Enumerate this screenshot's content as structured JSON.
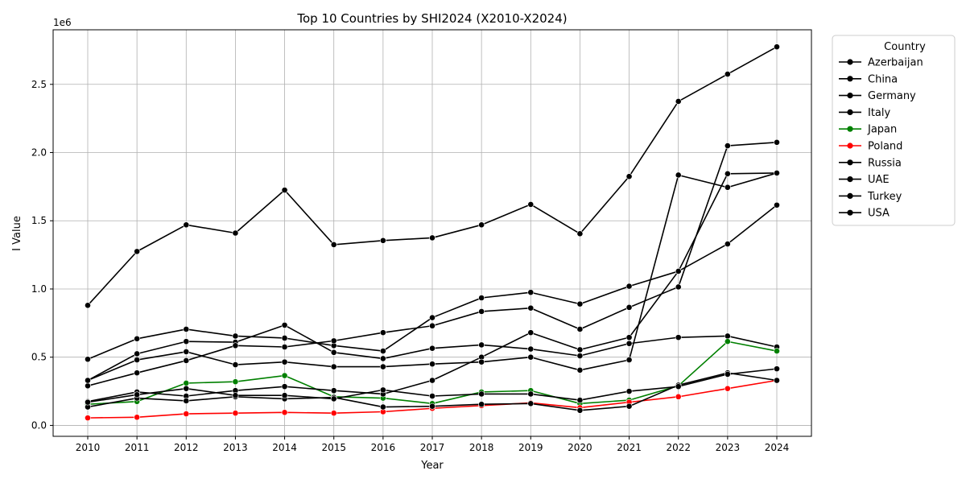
{
  "chart_data": {
    "type": "line",
    "title": "Top 10 Countries by SHI2024 (X2010-X2024)",
    "xlabel": "Year",
    "ylabel": "I Value",
    "y_scale_label": "1e6",
    "x": [
      2010,
      2011,
      2012,
      2013,
      2014,
      2015,
      2016,
      2017,
      2018,
      2019,
      2020,
      2021,
      2022,
      2023,
      2024
    ],
    "x_tick_labels": [
      "2010",
      "2011",
      "2012",
      "2013",
      "2014",
      "2015",
      "2016",
      "2017",
      "2018",
      "2019",
      "2020",
      "2021",
      "2022",
      "2023",
      "2024"
    ],
    "ylim": [
      -80000,
      2900000
    ],
    "y_ticks": [
      0,
      500000,
      1000000,
      1500000,
      2000000,
      2500000
    ],
    "y_tick_labels": [
      "0.0",
      "0.5",
      "1.0",
      "1.5",
      "2.0",
      "2.5"
    ],
    "grid": true,
    "legend_title": "Country",
    "legend_position": "outside-right",
    "series": [
      {
        "name": "Azerbaijan",
        "color": "#000000",
        "values": [
          880000,
          1275000,
          1470000,
          1410000,
          1725000,
          1325000,
          1355000,
          1375000,
          1470000,
          1620000,
          1405000,
          1825000,
          2375000,
          2575000,
          2775000
        ]
      },
      {
        "name": "China",
        "color": "#000000",
        "values": [
          485000,
          635000,
          705000,
          655000,
          640000,
          585000,
          545000,
          790000,
          935000,
          975000,
          890000,
          1020000,
          1130000,
          1330000,
          1615000
        ]
      },
      {
        "name": "Germany",
        "color": "#000000",
        "values": [
          330000,
          525000,
          615000,
          610000,
          735000,
          535000,
          490000,
          565000,
          590000,
          560000,
          510000,
          600000,
          645000,
          655000,
          575000
        ]
      },
      {
        "name": "Italy",
        "color": "#000000",
        "values": [
          290000,
          385000,
          475000,
          585000,
          575000,
          620000,
          680000,
          730000,
          835000,
          860000,
          705000,
          865000,
          1015000,
          2050000,
          2075000
        ]
      },
      {
        "name": "Japan",
        "color": "#008000",
        "values": [
          155000,
          175000,
          310000,
          320000,
          365000,
          210000,
          200000,
          160000,
          245000,
          255000,
          160000,
          185000,
          290000,
          615000,
          545000
        ]
      },
      {
        "name": "Poland",
        "color": "#ff0000",
        "values": [
          55000,
          60000,
          85000,
          90000,
          95000,
          90000,
          100000,
          125000,
          145000,
          165000,
          130000,
          170000,
          210000,
          270000,
          330000
        ]
      },
      {
        "name": "Russia",
        "color": "#000000",
        "values": [
          175000,
          245000,
          215000,
          255000,
          285000,
          255000,
          230000,
          330000,
          500000,
          680000,
          555000,
          645000,
          1130000,
          1845000,
          1850000
        ]
      },
      {
        "name": "UAE",
        "color": "#000000",
        "values": [
          135000,
          200000,
          180000,
          210000,
          195000,
          205000,
          135000,
          140000,
          155000,
          160000,
          110000,
          140000,
          295000,
          385000,
          330000
        ]
      },
      {
        "name": "Turkey",
        "color": "#000000",
        "values": [
          330000,
          480000,
          540000,
          445000,
          465000,
          430000,
          430000,
          450000,
          465000,
          500000,
          405000,
          480000,
          1835000,
          1745000,
          1850000
        ]
      },
      {
        "name": "USA",
        "color": "#000000",
        "values": [
          170000,
          225000,
          270000,
          220000,
          220000,
          195000,
          260000,
          215000,
          230000,
          230000,
          185000,
          250000,
          285000,
          375000,
          415000
        ]
      }
    ]
  }
}
